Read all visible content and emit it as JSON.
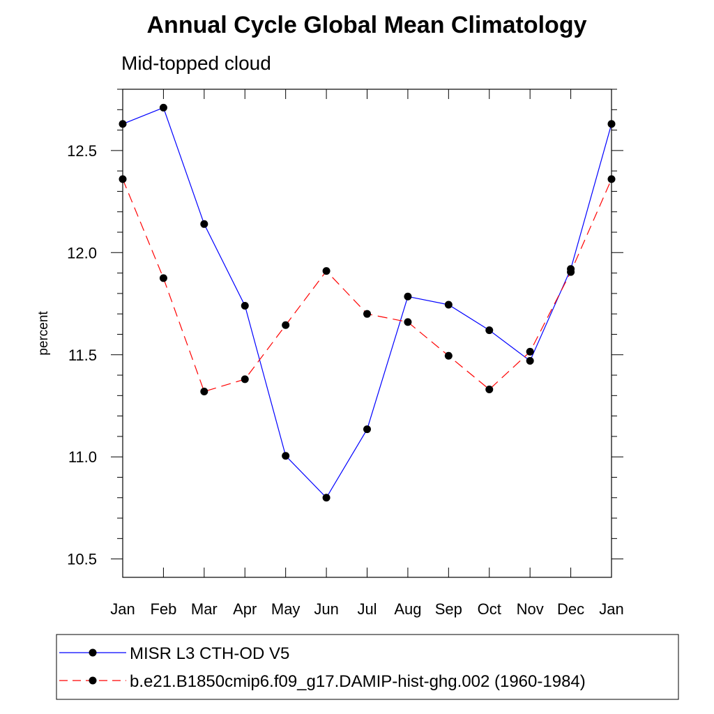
{
  "chart_data": {
    "type": "line",
    "title": "Annual Cycle Global Mean Climatology",
    "subtitle": "Mid-topped cloud",
    "xlabel": "",
    "ylabel": "percent",
    "categories": [
      "Jan",
      "Feb",
      "Mar",
      "Apr",
      "May",
      "Jun",
      "Jul",
      "Aug",
      "Sep",
      "Oct",
      "Nov",
      "Dec",
      "Jan"
    ],
    "ylim": [
      10.41,
      12.8
    ],
    "yticks": [
      10.5,
      11.0,
      11.5,
      12.0,
      12.5
    ],
    "ytick_labels": [
      "10.5",
      "11.0",
      "11.5",
      "12.0",
      "12.5"
    ],
    "series": [
      {
        "name": "MISR L3 CTH-OD V5",
        "color": "#0000ff",
        "dash": "solid",
        "values": [
          12.63,
          12.71,
          12.14,
          11.74,
          11.005,
          10.8,
          11.135,
          11.785,
          11.745,
          11.62,
          11.47,
          11.92,
          12.63
        ]
      },
      {
        "name": "b.e21.B1850cmip6.f09_g17.DAMIP-hist-ghg.002 (1960-1984)",
        "color": "#ff0000",
        "dash": "dashed",
        "values": [
          12.36,
          11.875,
          11.32,
          11.38,
          11.645,
          11.91,
          11.7,
          11.66,
          11.495,
          11.33,
          11.515,
          11.905,
          12.36
        ]
      }
    ]
  }
}
